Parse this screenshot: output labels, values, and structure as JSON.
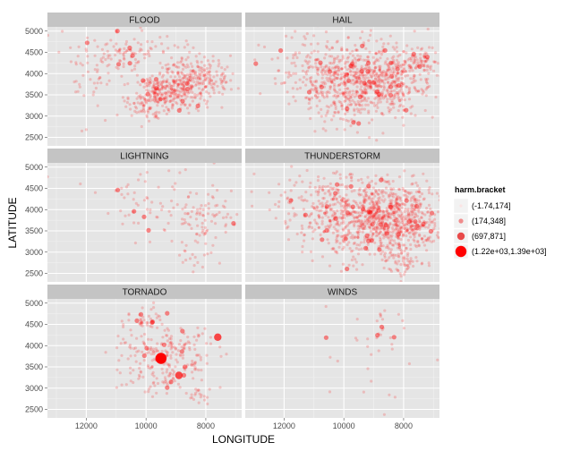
{
  "chart_data": {
    "type": "scatter",
    "xlabel": "LONGITUDE",
    "ylabel": "LATITUDE",
    "x_reversed": true,
    "xlim": [
      13300,
      6800
    ],
    "ylim": [
      2300,
      5100
    ],
    "x_ticks": [
      12000,
      10000,
      8000
    ],
    "y_ticks": [
      2500,
      3000,
      3500,
      4000,
      4500,
      5000
    ],
    "facet_layout": "2 columns x 3 rows",
    "grid": true,
    "legend_position": "right",
    "legend": {
      "title": "harm.bracket",
      "entries": [
        {
          "label": "(-1.74,174]",
          "color": "#fbe3e3"
        },
        {
          "label": "(174,348]",
          "color": "#f08c8c"
        },
        {
          "label": "(697,871]",
          "color": "#e84a4a"
        },
        {
          "label": "(1.22e+03,1.39e+03]",
          "color": "#ff0000"
        }
      ]
    },
    "panels": [
      {
        "name": "FLOOD",
        "clusters": [
          {
            "x": 8400,
            "y": 3900,
            "sx": 600,
            "sy": 300,
            "n": 260
          },
          {
            "x": 9300,
            "y": 3600,
            "sx": 500,
            "sy": 200,
            "n": 200
          },
          {
            "x": 10800,
            "y": 4500,
            "sx": 800,
            "sy": 250,
            "n": 110
          },
          {
            "x": 9800,
            "y": 3300,
            "sx": 500,
            "sy": 200,
            "n": 90
          },
          {
            "x": 11500,
            "y": 3700,
            "sx": 700,
            "sy": 400,
            "n": 40
          }
        ],
        "big_points": []
      },
      {
        "name": "HAIL",
        "clusters": [
          {
            "x": 9700,
            "y": 3800,
            "sx": 900,
            "sy": 450,
            "n": 650
          },
          {
            "x": 8200,
            "y": 3900,
            "sx": 500,
            "sy": 400,
            "n": 230
          },
          {
            "x": 11200,
            "y": 4200,
            "sx": 900,
            "sy": 400,
            "n": 70
          },
          {
            "x": 7400,
            "y": 4300,
            "sx": 300,
            "sy": 200,
            "n": 60
          }
        ],
        "big_points": []
      },
      {
        "name": "LIGHTNING",
        "clusters": [
          {
            "x": 8000,
            "y": 3800,
            "sx": 600,
            "sy": 300,
            "n": 70
          },
          {
            "x": 9800,
            "y": 4200,
            "sx": 1200,
            "sy": 450,
            "n": 70
          },
          {
            "x": 8300,
            "y": 3100,
            "sx": 300,
            "sy": 300,
            "n": 25
          }
        ],
        "big_points": []
      },
      {
        "name": "THUNDERSTORM",
        "clusters": [
          {
            "x": 9300,
            "y": 3800,
            "sx": 1000,
            "sy": 450,
            "n": 750
          },
          {
            "x": 8000,
            "y": 3700,
            "sx": 600,
            "sy": 500,
            "n": 380
          },
          {
            "x": 11200,
            "y": 4300,
            "sx": 900,
            "sy": 400,
            "n": 70
          },
          {
            "x": 8000,
            "y": 2800,
            "sx": 200,
            "sy": 150,
            "n": 30
          }
        ],
        "big_points": []
      },
      {
        "name": "TORNADO",
        "clusters": [
          {
            "x": 9300,
            "y": 3700,
            "sx": 800,
            "sy": 400,
            "n": 250
          },
          {
            "x": 10000,
            "y": 4600,
            "sx": 400,
            "sy": 150,
            "n": 40
          },
          {
            "x": 8200,
            "y": 2800,
            "sx": 200,
            "sy": 100,
            "n": 15
          }
        ],
        "big_points": [
          {
            "x": 9500,
            "y": 3700,
            "bracket": 3
          },
          {
            "x": 8900,
            "y": 3300,
            "bracket": 2
          },
          {
            "x": 8700,
            "y": 3500,
            "bracket": 1
          },
          {
            "x": 7600,
            "y": 4200,
            "bracket": 2
          }
        ]
      },
      {
        "name": "WINDS",
        "clusters": [
          {
            "x": 9000,
            "y": 3700,
            "sx": 1500,
            "sy": 700,
            "n": 30
          },
          {
            "x": 8800,
            "y": 4500,
            "sx": 300,
            "sy": 300,
            "n": 15
          }
        ],
        "big_points": []
      }
    ]
  }
}
